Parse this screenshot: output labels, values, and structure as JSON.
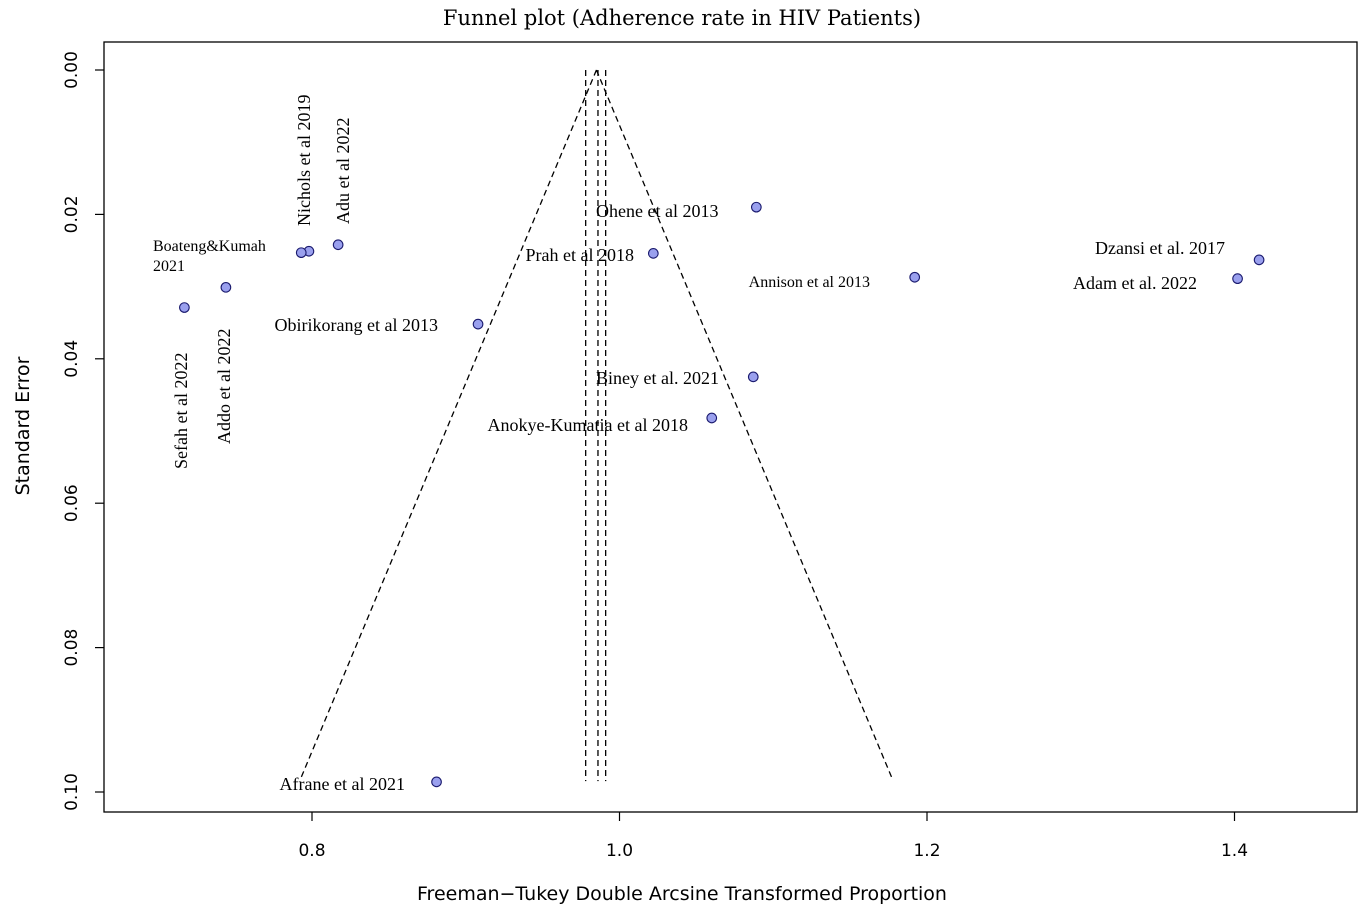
{
  "chart_data": {
    "type": "scatter",
    "title": "Funnel plot (Adherence rate in HIV Patients)",
    "xlabel": "Freeman−Tukey Double Arcsine Transformed Proportion",
    "ylabel": "Standard Error",
    "xlim": [
      0.67,
      1.48
    ],
    "ylim": [
      0.0,
      0.1
    ],
    "y_reversed": true,
    "x_ticks": [
      {
        "value": 0.8,
        "label": "0.8"
      },
      {
        "value": 1.0,
        "label": "1.0"
      },
      {
        "value": 1.2,
        "label": "1.2"
      },
      {
        "value": 1.4,
        "label": "1.4"
      }
    ],
    "y_ticks": [
      {
        "value": 0.0,
        "label": "0.00"
      },
      {
        "value": 0.02,
        "label": "0.02"
      },
      {
        "value": 0.04,
        "label": "0.04"
      },
      {
        "value": 0.06,
        "label": "0.06"
      },
      {
        "value": 0.08,
        "label": "0.08"
      },
      {
        "value": 0.1,
        "label": "0.10"
      }
    ],
    "funnel": {
      "center": 0.985,
      "apex_se": 0.0,
      "base_se": 0.098,
      "z": 1.96
    },
    "vertical_lines": [
      0.978,
      0.986,
      0.991
    ],
    "point_color": "#9aa0ee",
    "studies": [
      {
        "name": "Nichols et al 2019",
        "x": 0.798,
        "y": 0.0251,
        "label_rotated": true
      },
      {
        "name": "Adu et al 2022",
        "x": 0.817,
        "y": 0.0242,
        "label_rotated": true
      },
      {
        "name": "Boateng&Kumah 2021",
        "line1": "Boateng&Kumah",
        "line2": "2021",
        "x": 0.793,
        "y": 0.0253
      },
      {
        "name": "Sefah et al 2022",
        "x": 0.717,
        "y": 0.0329,
        "label_rotated": true
      },
      {
        "name": "Addo et al 2022",
        "x": 0.744,
        "y": 0.0301,
        "label_rotated": true
      },
      {
        "name": "Obirikorang et al 2013",
        "x": 0.908,
        "y": 0.0352
      },
      {
        "name": "Ohene et al 2013",
        "x": 1.089,
        "y": 0.019
      },
      {
        "name": "Prah et al 2018",
        "x": 1.022,
        "y": 0.0254
      },
      {
        "name": "Annison et al 2013",
        "x": 1.192,
        "y": 0.0287
      },
      {
        "name": "Dzansi et al. 2017",
        "x": 1.416,
        "y": 0.0263
      },
      {
        "name": "Adam et al. 2022",
        "x": 1.402,
        "y": 0.0289
      },
      {
        "name": "Biney et al. 2021",
        "x": 1.087,
        "y": 0.0425
      },
      {
        "name": "Anokye-Kumatia et al 2018",
        "x": 1.06,
        "y": 0.0482
      },
      {
        "name": "Afrane et al 2021",
        "x": 0.881,
        "y": 0.0986
      }
    ]
  }
}
